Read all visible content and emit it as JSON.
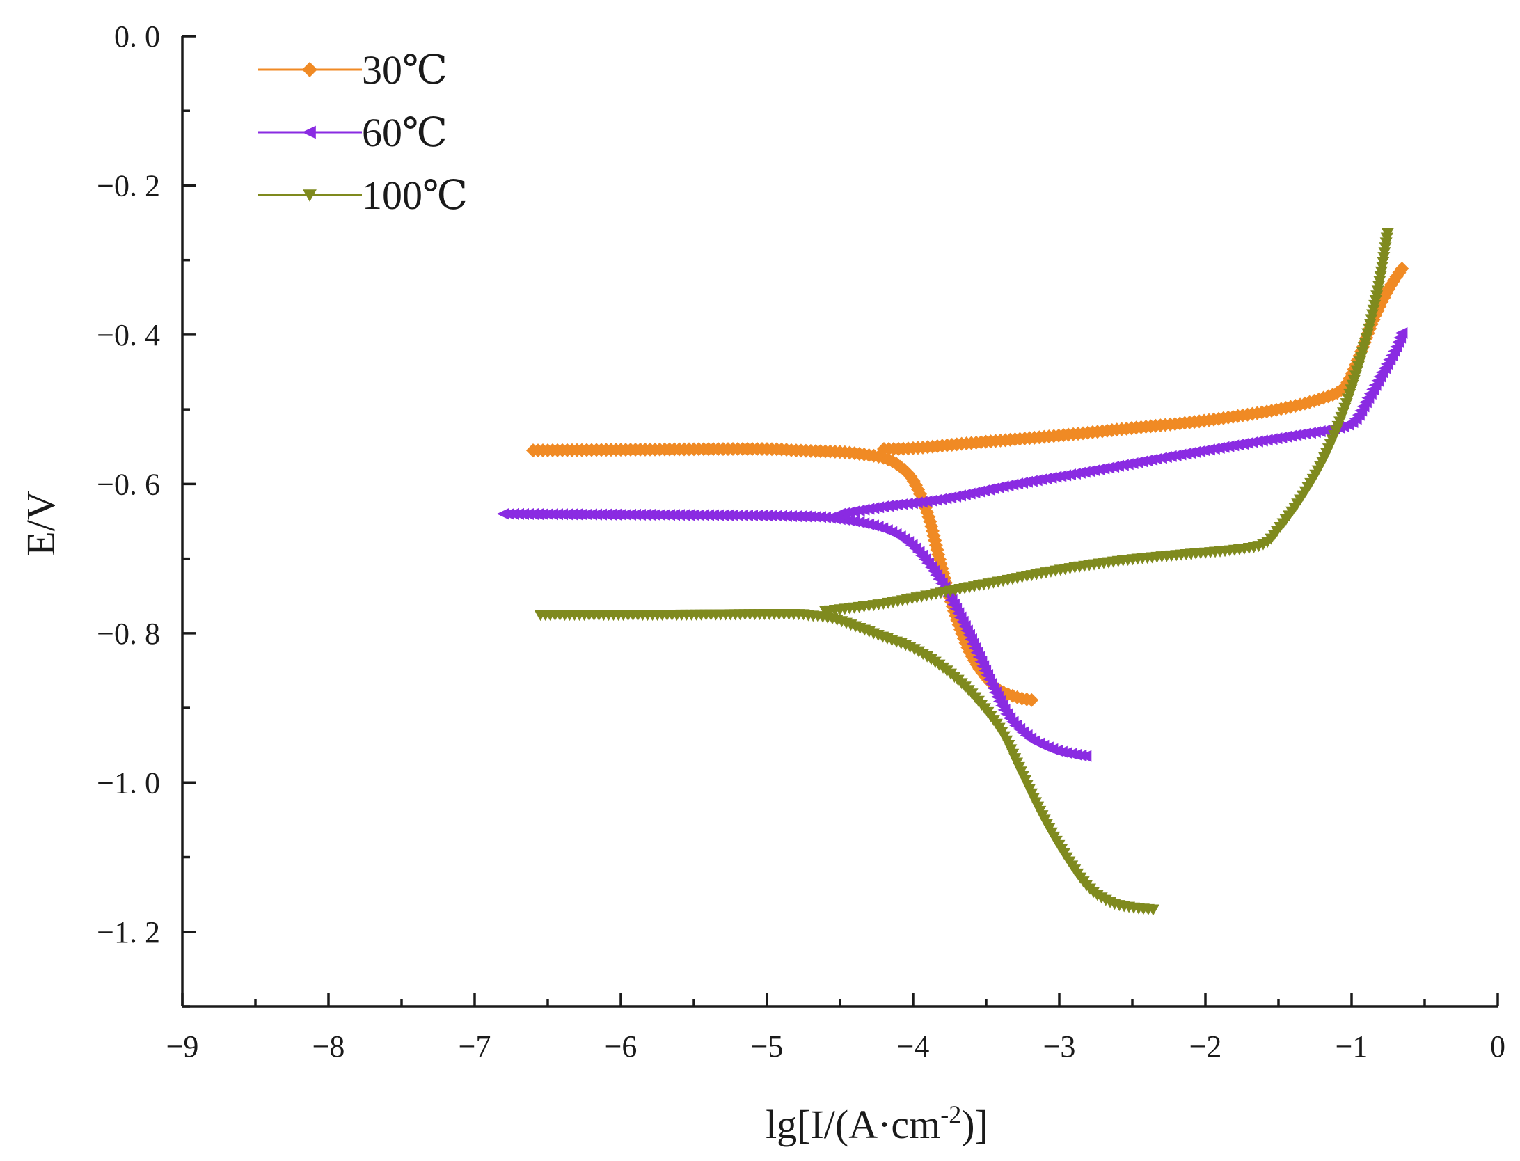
{
  "chart_data": {
    "type": "line",
    "title": "",
    "xlabel": "lg[I/(A·cm⁻²)]",
    "xlabel_parts": {
      "base": "lg[I/(A·cm",
      "sup": "-2",
      "tail": ")]"
    },
    "ylabel": "E/V",
    "xlim": [
      -9,
      0
    ],
    "ylim": [
      -1.3,
      0.0
    ],
    "x_ticks": [
      -9,
      -8,
      -7,
      -6,
      -5,
      -4,
      -3,
      -2,
      -1,
      0
    ],
    "x_tick_labels": [
      "−9",
      "−8",
      "−7",
      "−6",
      "−5",
      "−4",
      "−3",
      "−2",
      "−1",
      "0"
    ],
    "y_ticks": [
      0.0,
      -0.2,
      -0.4,
      -0.6,
      -0.8,
      -1.0,
      -1.2
    ],
    "y_tick_labels": [
      "0. 0",
      "−0. 2",
      "−0. 4",
      "−0. 6",
      "−0. 8",
      "−1. 0",
      "−1. 2"
    ],
    "grid": false,
    "legend_position": "top-left",
    "series": [
      {
        "name": "30℃",
        "color": "#F08A24",
        "marker": "diamond",
        "cathodic": [
          [
            -6.6,
            -0.555
          ],
          [
            -5.12,
            -0.553
          ],
          [
            -4.8,
            -0.555
          ],
          [
            -4.65,
            -0.556
          ],
          [
            -4.5,
            -0.557
          ],
          [
            -4.35,
            -0.56
          ],
          [
            -4.2,
            -0.565
          ],
          [
            -4.1,
            -0.575
          ],
          [
            -4.0,
            -0.595
          ],
          [
            -3.9,
            -0.64
          ],
          [
            -3.82,
            -0.7
          ],
          [
            -3.72,
            -0.77
          ],
          [
            -3.6,
            -0.83
          ],
          [
            -3.45,
            -0.87
          ],
          [
            -3.3,
            -0.885
          ],
          [
            -3.17,
            -0.89
          ]
        ],
        "anodic": [
          [
            -4.2,
            -0.553
          ],
          [
            -4.0,
            -0.552
          ],
          [
            -3.6,
            -0.545
          ],
          [
            -3.0,
            -0.535
          ],
          [
            -2.5,
            -0.525
          ],
          [
            -2.0,
            -0.515
          ],
          [
            -1.5,
            -0.5
          ],
          [
            -1.2,
            -0.485
          ],
          [
            -1.05,
            -0.47
          ],
          [
            -0.95,
            -0.43
          ],
          [
            -0.85,
            -0.38
          ],
          [
            -0.75,
            -0.34
          ],
          [
            -0.65,
            -0.31
          ]
        ]
      },
      {
        "name": "60℃",
        "color": "#8A2BE2",
        "marker": "triangle-left",
        "cathodic": [
          [
            -6.8,
            -0.64
          ],
          [
            -5.15,
            -0.642
          ],
          [
            -4.85,
            -0.643
          ],
          [
            -4.65,
            -0.644
          ],
          [
            -4.5,
            -0.647
          ],
          [
            -4.35,
            -0.652
          ],
          [
            -4.2,
            -0.66
          ],
          [
            -4.05,
            -0.675
          ],
          [
            -3.92,
            -0.7
          ],
          [
            -3.78,
            -0.74
          ],
          [
            -3.62,
            -0.8
          ],
          [
            -3.48,
            -0.86
          ],
          [
            -3.35,
            -0.91
          ],
          [
            -3.2,
            -0.94
          ],
          [
            -3.05,
            -0.955
          ],
          [
            -2.9,
            -0.962
          ],
          [
            -2.8,
            -0.965
          ]
        ],
        "anodic": [
          [
            -4.5,
            -0.64
          ],
          [
            -4.2,
            -0.63
          ],
          [
            -3.8,
            -0.62
          ],
          [
            -3.3,
            -0.6
          ],
          [
            -2.8,
            -0.583
          ],
          [
            -2.3,
            -0.565
          ],
          [
            -1.8,
            -0.548
          ],
          [
            -1.4,
            -0.535
          ],
          [
            -1.1,
            -0.525
          ],
          [
            -0.98,
            -0.515
          ],
          [
            -0.9,
            -0.49
          ],
          [
            -0.8,
            -0.455
          ],
          [
            -0.7,
            -0.42
          ],
          [
            -0.65,
            -0.395
          ]
        ]
      },
      {
        "name": "100℃",
        "color": "#7F8A1E",
        "marker": "triangle-down",
        "cathodic": [
          [
            -6.55,
            -0.775
          ],
          [
            -5.7,
            -0.775
          ],
          [
            -4.85,
            -0.774
          ],
          [
            -4.7,
            -0.776
          ],
          [
            -4.55,
            -0.78
          ],
          [
            -4.4,
            -0.79
          ],
          [
            -4.2,
            -0.805
          ],
          [
            -4.0,
            -0.82
          ],
          [
            -3.8,
            -0.845
          ],
          [
            -3.6,
            -0.88
          ],
          [
            -3.4,
            -0.93
          ],
          [
            -3.25,
            -0.99
          ],
          [
            -3.1,
            -1.05
          ],
          [
            -2.95,
            -1.1
          ],
          [
            -2.8,
            -1.14
          ],
          [
            -2.65,
            -1.16
          ],
          [
            -2.5,
            -1.167
          ],
          [
            -2.35,
            -1.17
          ]
        ],
        "anodic": [
          [
            -4.6,
            -0.77
          ],
          [
            -4.2,
            -0.76
          ],
          [
            -3.8,
            -0.745
          ],
          [
            -3.4,
            -0.73
          ],
          [
            -3.0,
            -0.715
          ],
          [
            -2.6,
            -0.703
          ],
          [
            -2.2,
            -0.695
          ],
          [
            -1.8,
            -0.688
          ],
          [
            -1.6,
            -0.68
          ],
          [
            -1.5,
            -0.66
          ],
          [
            -1.35,
            -0.62
          ],
          [
            -1.2,
            -0.57
          ],
          [
            -1.05,
            -0.5
          ],
          [
            -0.92,
            -0.42
          ],
          [
            -0.82,
            -0.34
          ],
          [
            -0.75,
            -0.26
          ]
        ]
      }
    ]
  }
}
